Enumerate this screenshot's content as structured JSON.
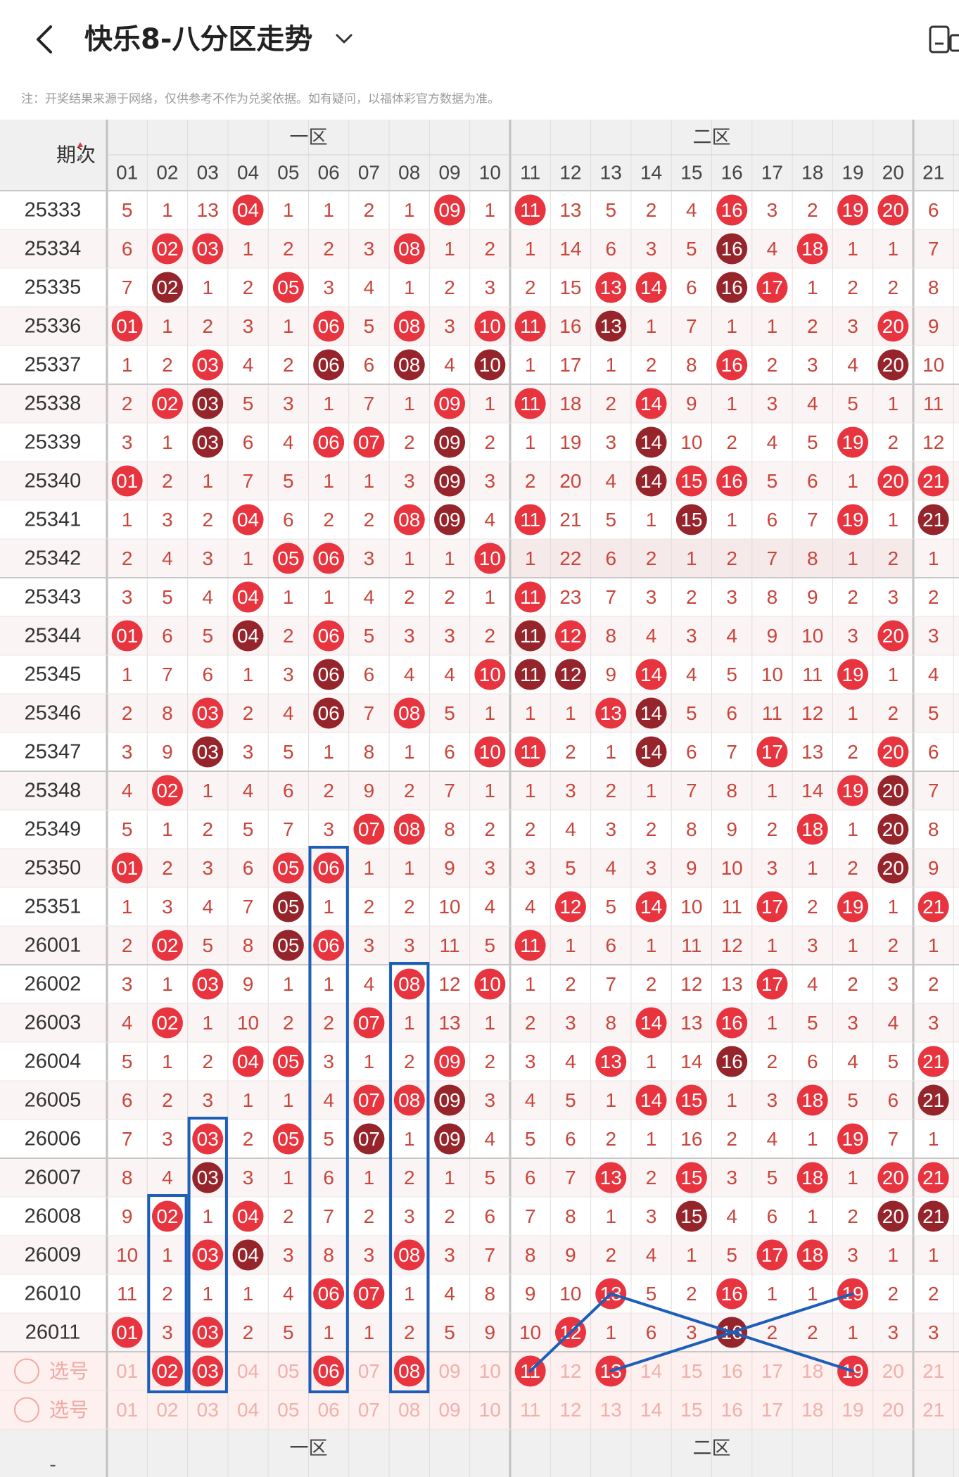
{
  "header": {
    "title": "快乐8-八分区走势",
    "note": "注：开奖结果来源于网络，仅供参考不作为兑奖依据。如有疑问，以福体彩官方数据为准。"
  },
  "table": {
    "period_header": "期次",
    "zones": [
      "一区",
      "二区"
    ],
    "columns": [
      "01",
      "02",
      "03",
      "04",
      "05",
      "06",
      "07",
      "08",
      "09",
      "10",
      "11",
      "12",
      "13",
      "14",
      "15",
      "16",
      "17",
      "18",
      "19",
      "20",
      "21"
    ],
    "pick_label": "选号",
    "footer_left": "-",
    "rows": [
      {
        "period": "25333",
        "cells": [
          "5",
          "1",
          "13",
          "04",
          "1",
          "1",
          "2",
          "1",
          "09",
          "1",
          "11",
          "13",
          "5",
          "2",
          "4",
          "16",
          "3",
          "2",
          "19",
          "20",
          "6"
        ]
      },
      {
        "period": "25334",
        "cells": [
          "6",
          "02",
          "03",
          "1",
          "2",
          "2",
          "3",
          "08",
          "1",
          "2",
          "1",
          "14",
          "6",
          "3",
          "5",
          "16",
          "4",
          "18",
          "1",
          "1",
          "7"
        ]
      },
      {
        "period": "25335",
        "cells": [
          "7",
          "02",
          "1",
          "2",
          "05",
          "3",
          "4",
          "1",
          "2",
          "3",
          "2",
          "15",
          "13",
          "14",
          "6",
          "16",
          "17",
          "1",
          "2",
          "2",
          "8"
        ]
      },
      {
        "period": "25336",
        "cells": [
          "01",
          "1",
          "2",
          "3",
          "1",
          "06",
          "5",
          "08",
          "3",
          "10",
          "11",
          "16",
          "13",
          "1",
          "7",
          "1",
          "1",
          "2",
          "3",
          "20",
          "9"
        ]
      },
      {
        "period": "25337",
        "cells": [
          "1",
          "2",
          "03",
          "4",
          "2",
          "06",
          "6",
          "08",
          "4",
          "10",
          "1",
          "17",
          "1",
          "2",
          "8",
          "16",
          "2",
          "3",
          "4",
          "20",
          "10"
        ]
      },
      {
        "period": "25338",
        "cells": [
          "2",
          "02",
          "03",
          "5",
          "3",
          "1",
          "7",
          "1",
          "09",
          "1",
          "11",
          "18",
          "2",
          "14",
          "9",
          "1",
          "3",
          "4",
          "5",
          "1",
          "11"
        ]
      },
      {
        "period": "25339",
        "cells": [
          "3",
          "1",
          "03",
          "6",
          "4",
          "06",
          "07",
          "2",
          "09",
          "2",
          "1",
          "19",
          "3",
          "14",
          "10",
          "2",
          "4",
          "5",
          "19",
          "2",
          "12"
        ]
      },
      {
        "period": "25340",
        "cells": [
          "01",
          "2",
          "1",
          "7",
          "5",
          "1",
          "1",
          "3",
          "09",
          "3",
          "2",
          "20",
          "4",
          "14",
          "15",
          "16",
          "5",
          "6",
          "1",
          "20",
          "21"
        ]
      },
      {
        "period": "25341",
        "cells": [
          "1",
          "3",
          "2",
          "04",
          "6",
          "2",
          "2",
          "08",
          "09",
          "4",
          "11",
          "21",
          "5",
          "1",
          "15",
          "1",
          "6",
          "7",
          "19",
          "1",
          "21"
        ]
      },
      {
        "period": "25342",
        "cells": [
          "2",
          "4",
          "3",
          "1",
          "05",
          "06",
          "3",
          "1",
          "1",
          "10",
          "1",
          "22",
          "6",
          "2",
          "1",
          "2",
          "7",
          "8",
          "1",
          "2",
          "1"
        ]
      },
      {
        "period": "25343",
        "cells": [
          "3",
          "5",
          "4",
          "04",
          "1",
          "1",
          "4",
          "2",
          "2",
          "1",
          "11",
          "23",
          "7",
          "3",
          "2",
          "3",
          "8",
          "9",
          "2",
          "3",
          "2"
        ]
      },
      {
        "period": "25344",
        "cells": [
          "01",
          "6",
          "5",
          "04",
          "2",
          "06",
          "5",
          "3",
          "3",
          "2",
          "11",
          "12",
          "8",
          "4",
          "3",
          "4",
          "9",
          "10",
          "3",
          "20",
          "3"
        ]
      },
      {
        "period": "25345",
        "cells": [
          "1",
          "7",
          "6",
          "1",
          "3",
          "06",
          "6",
          "4",
          "4",
          "10",
          "11",
          "12",
          "9",
          "14",
          "4",
          "5",
          "10",
          "11",
          "19",
          "1",
          "4"
        ]
      },
      {
        "period": "25346",
        "cells": [
          "2",
          "8",
          "03",
          "2",
          "4",
          "06",
          "7",
          "08",
          "5",
          "1",
          "1",
          "1",
          "13",
          "14",
          "5",
          "6",
          "11",
          "12",
          "1",
          "2",
          "5"
        ]
      },
      {
        "period": "25347",
        "cells": [
          "3",
          "9",
          "03",
          "3",
          "5",
          "1",
          "8",
          "1",
          "6",
          "10",
          "11",
          "2",
          "1",
          "14",
          "6",
          "7",
          "17",
          "13",
          "2",
          "20",
          "6"
        ]
      },
      {
        "period": "25348",
        "cells": [
          "4",
          "02",
          "1",
          "4",
          "6",
          "2",
          "9",
          "2",
          "7",
          "1",
          "1",
          "3",
          "2",
          "1",
          "7",
          "8",
          "1",
          "14",
          "19",
          "20",
          "7"
        ]
      },
      {
        "period": "25349",
        "cells": [
          "5",
          "1",
          "2",
          "5",
          "7",
          "3",
          "07",
          "08",
          "8",
          "2",
          "2",
          "4",
          "3",
          "2",
          "8",
          "9",
          "2",
          "18",
          "1",
          "20",
          "8"
        ]
      },
      {
        "period": "25350",
        "cells": [
          "01",
          "2",
          "3",
          "6",
          "05",
          "06",
          "1",
          "1",
          "9",
          "3",
          "3",
          "5",
          "4",
          "3",
          "9",
          "10",
          "3",
          "1",
          "2",
          "20",
          "9"
        ]
      },
      {
        "period": "25351",
        "cells": [
          "1",
          "3",
          "4",
          "7",
          "05",
          "1",
          "2",
          "2",
          "10",
          "4",
          "4",
          "12",
          "5",
          "14",
          "10",
          "11",
          "17",
          "2",
          "19",
          "1",
          "21"
        ]
      },
      {
        "period": "26001",
        "cells": [
          "2",
          "02",
          "5",
          "8",
          "05",
          "06",
          "3",
          "3",
          "11",
          "5",
          "11",
          "1",
          "6",
          "1",
          "11",
          "12",
          "1",
          "3",
          "1",
          "2",
          "1"
        ]
      },
      {
        "period": "26002",
        "cells": [
          "3",
          "1",
          "03",
          "9",
          "1",
          "1",
          "4",
          "08",
          "12",
          "10",
          "1",
          "2",
          "7",
          "2",
          "12",
          "13",
          "17",
          "4",
          "2",
          "3",
          "2"
        ]
      },
      {
        "period": "26003",
        "cells": [
          "4",
          "02",
          "1",
          "10",
          "2",
          "2",
          "07",
          "1",
          "13",
          "1",
          "2",
          "3",
          "8",
          "14",
          "13",
          "16",
          "1",
          "5",
          "3",
          "4",
          "3"
        ]
      },
      {
        "period": "26004",
        "cells": [
          "5",
          "1",
          "2",
          "04",
          "05",
          "3",
          "1",
          "2",
          "09",
          "2",
          "3",
          "4",
          "13",
          "1",
          "14",
          "16",
          "2",
          "6",
          "4",
          "5",
          "21"
        ]
      },
      {
        "period": "26005",
        "cells": [
          "6",
          "2",
          "3",
          "1",
          "1",
          "4",
          "07",
          "08",
          "09",
          "3",
          "4",
          "5",
          "1",
          "14",
          "15",
          "1",
          "3",
          "18",
          "5",
          "6",
          "21"
        ]
      },
      {
        "period": "26006",
        "cells": [
          "7",
          "3",
          "03",
          "2",
          "05",
          "5",
          "07",
          "1",
          "09",
          "4",
          "5",
          "6",
          "2",
          "1",
          "16",
          "2",
          "4",
          "1",
          "19",
          "7",
          "1"
        ]
      },
      {
        "period": "26007",
        "cells": [
          "8",
          "4",
          "03",
          "3",
          "1",
          "6",
          "1",
          "2",
          "1",
          "5",
          "6",
          "7",
          "13",
          "2",
          "15",
          "3",
          "5",
          "18",
          "1",
          "20",
          "21"
        ]
      },
      {
        "period": "26008",
        "cells": [
          "9",
          "02",
          "1",
          "04",
          "2",
          "7",
          "2",
          "3",
          "2",
          "6",
          "7",
          "8",
          "1",
          "3",
          "15",
          "4",
          "6",
          "1",
          "2",
          "20",
          "21"
        ]
      },
      {
        "period": "26009",
        "cells": [
          "10",
          "1",
          "03",
          "04",
          "3",
          "8",
          "3",
          "08",
          "3",
          "7",
          "8",
          "9",
          "2",
          "4",
          "1",
          "5",
          "17",
          "18",
          "3",
          "1",
          "1"
        ]
      },
      {
        "period": "26010",
        "cells": [
          "11",
          "2",
          "1",
          "1",
          "4",
          "06",
          "07",
          "1",
          "4",
          "8",
          "9",
          "10",
          "13",
          "5",
          "2",
          "16",
          "1",
          "1",
          "19",
          "2",
          "2"
        ]
      },
      {
        "period": "26011",
        "cells": [
          "01",
          "3",
          "03",
          "2",
          "5",
          "1",
          "1",
          "2",
          "5",
          "9",
          "10",
          "12",
          "1",
          "6",
          "3",
          "16",
          "2",
          "2",
          "1",
          "3",
          "3"
        ]
      }
    ]
  },
  "picks": {
    "row1_selected": [
      "02",
      "03",
      "06",
      "08",
      "11",
      "13",
      "19"
    ],
    "row2_selected": []
  },
  "colors": {
    "ball_red": "#e8343f",
    "ball_dark": "#96252b",
    "miss_text": "#c9453b",
    "pick_text": "#f0b0ab",
    "highlight_box": "#1d5fb8"
  }
}
